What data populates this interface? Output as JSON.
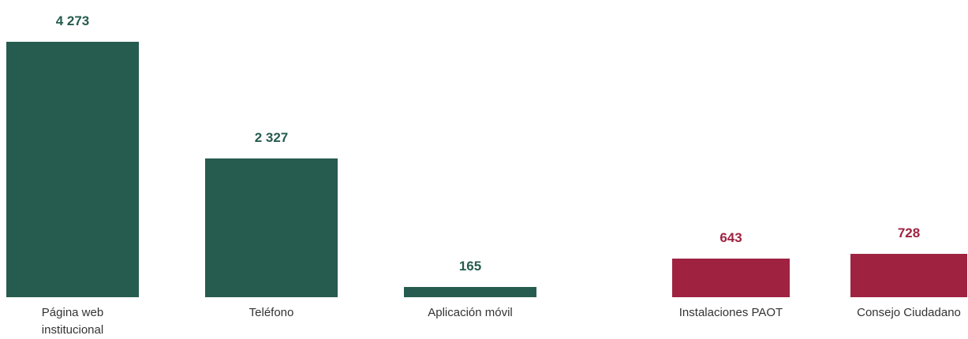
{
  "chart_data": {
    "type": "bar",
    "categories": [
      "Página web institucional",
      "Teléfono",
      "Aplicación móvil",
      "Instalaciones PAOT",
      "Consejo Ciudadano"
    ],
    "values": [
      4273,
      2327,
      165,
      643,
      728
    ],
    "value_labels": [
      "4 273",
      "2 327",
      "165",
      "643",
      "728"
    ],
    "colors": [
      "#265c4f",
      "#265c4f",
      "#265c4f",
      "#9f2241",
      "#9f2241"
    ]
  }
}
